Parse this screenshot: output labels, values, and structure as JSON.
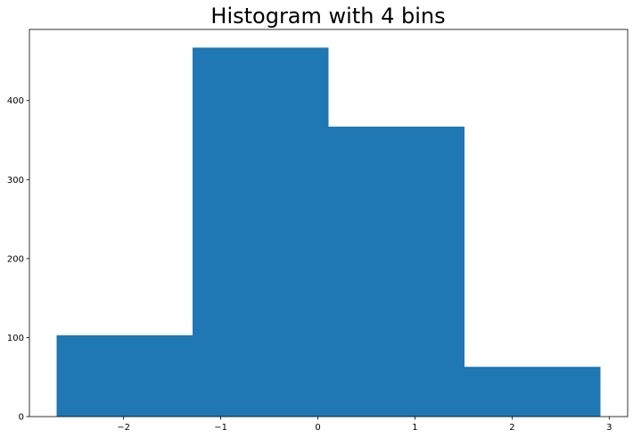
{
  "chart_data": {
    "type": "bar",
    "title": "Histogram with 4 bins",
    "xlabel": "",
    "ylabel": "",
    "bins": [
      {
        "x0": -2.69,
        "x1": -1.29,
        "count": 103
      },
      {
        "x0": -1.29,
        "x1": 0.11,
        "count": 467
      },
      {
        "x0": 0.11,
        "x1": 1.51,
        "count": 367
      },
      {
        "x0": 1.51,
        "x1": 2.91,
        "count": 63
      }
    ],
    "xlim": [
      -2.97,
      3.19
    ],
    "ylim": [
      0,
      490
    ],
    "xticks": [
      -2,
      -1,
      0,
      1,
      2,
      3
    ],
    "xtick_labels": [
      "−2",
      "−1",
      "0",
      "1",
      "2",
      "3"
    ],
    "yticks": [
      0,
      100,
      200,
      300,
      400
    ],
    "ytick_labels": [
      "0",
      "100",
      "200",
      "300",
      "400"
    ],
    "bar_color": "#1f77b4",
    "grid": false,
    "legend": "none"
  }
}
